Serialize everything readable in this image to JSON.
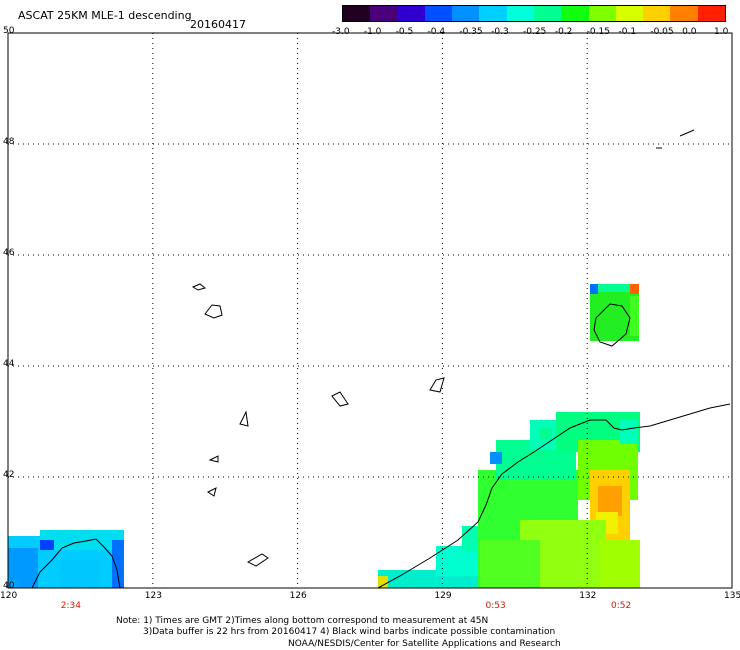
{
  "header": {
    "title": "ASCAT 25KM MLE-1 descending",
    "date": "20160417"
  },
  "colorbar": {
    "labels": [
      "-3.0",
      "-1.0",
      "-0.5",
      "-0.4",
      "-0.35",
      "-0.3",
      "-0.25",
      "-0.2",
      "-0.15",
      "-0.1",
      "-0.05",
      "0.0",
      "1.0"
    ],
    "colors": [
      "#200020",
      "#4a007a",
      "#3000d0",
      "#0050ff",
      "#0090ff",
      "#00d0ff",
      "#00ffd8",
      "#00ff90",
      "#10ff10",
      "#80ff00",
      "#d8ff00",
      "#ffd000",
      "#ff8000",
      "#ff2000"
    ]
  },
  "map": {
    "lat_labels": [
      "50",
      "48",
      "46",
      "44",
      "42",
      "40"
    ],
    "lon_labels": [
      "120",
      "123",
      "126",
      "129",
      "132",
      "135"
    ],
    "times": [
      {
        "label": "2:34",
        "lon": 121.3
      },
      {
        "label": "0:53",
        "lon": 130.1
      },
      {
        "label": "0:52",
        "lon": 132.7
      }
    ]
  },
  "footer": {
    "note1": "Note: 1) Times are GMT 2)Times along bottom correspond to measurement at 45N",
    "note2": "3)Data buffer is 22 hrs from 20160417 4) Black wind barbs indicate possible contamination",
    "credit": "NOAA/NESDIS/Center for Satellite Applications and Research"
  }
}
